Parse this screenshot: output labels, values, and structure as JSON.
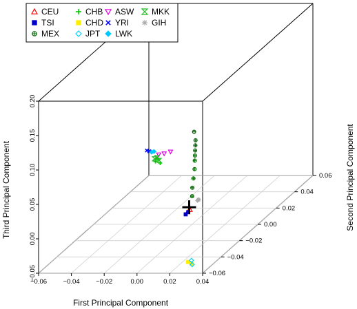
{
  "chart_data": {
    "type": "scatter",
    "dimensions": 3,
    "title": "",
    "xlabel": "First Principal Component",
    "ylabel": "Second Principal Component",
    "zlabel": "Third Principal Component",
    "xlim": [
      -0.06,
      0.04
    ],
    "ylim": [
      -0.06,
      0.06
    ],
    "zlim": [
      -0.05,
      0.2
    ],
    "x_ticks": [
      "−0.06",
      "−0.04",
      "−0.02",
      "0.00",
      "0.02",
      "0.04"
    ],
    "y_ticks": [
      "−0.06",
      "−0.04",
      "−0.02",
      "0.00",
      "0.02",
      "0.04",
      "0.06"
    ],
    "z_ticks": [
      "−0.05",
      "0.00",
      "0.05",
      "0.10",
      "0.15",
      "0.20"
    ],
    "grid": true,
    "legend_position": "top-left",
    "series": [
      {
        "name": "CEU",
        "marker": "triangle-up-open",
        "color": "#ff0000",
        "points": [
          [
            0.028,
            -0.055,
            0.033
          ],
          [
            0.029,
            -0.054,
            0.035
          ]
        ]
      },
      {
        "name": "TSI",
        "marker": "square-filled",
        "color": "#0000cc",
        "points": [
          [
            0.028,
            -0.057,
            0.032
          ],
          [
            0.029,
            -0.056,
            0.034
          ]
        ]
      },
      {
        "name": "MEX",
        "marker": "circle-plus",
        "color": "#006400",
        "points": [
          [
            0.018,
            -0.03,
            0.12
          ],
          [
            0.02,
            -0.032,
            0.11
          ],
          [
            0.022,
            -0.036,
            0.1
          ],
          [
            0.024,
            -0.04,
            0.09
          ],
          [
            0.025,
            -0.042,
            0.08
          ],
          [
            0.026,
            -0.045,
            0.07
          ],
          [
            0.027,
            -0.048,
            0.06
          ],
          [
            0.028,
            -0.05,
            0.05
          ],
          [
            0.021,
            -0.034,
            0.105
          ],
          [
            0.023,
            -0.038,
            0.095
          ]
        ]
      },
      {
        "name": "CHB",
        "marker": "plus",
        "color": "#00cc00",
        "points": [
          [
            -0.042,
            0.035,
            0.0
          ],
          [
            -0.04,
            0.034,
            0.005
          ],
          [
            -0.038,
            0.033,
            0.0
          ]
        ]
      },
      {
        "name": "CHD",
        "marker": "square-filled",
        "color": "#ffee00",
        "points": [
          [
            0.022,
            -0.04,
            -0.06
          ],
          [
            0.021,
            -0.042,
            -0.055
          ]
        ]
      },
      {
        "name": "JPT",
        "marker": "diamond-open",
        "color": "#00d0ff",
        "points": [
          [
            0.022,
            -0.04,
            -0.055
          ],
          [
            0.023,
            -0.041,
            -0.06
          ]
        ]
      },
      {
        "name": "ASW",
        "marker": "triangle-down-open",
        "color": "#e000e0",
        "points": [
          [
            -0.04,
            0.035,
            0.01
          ],
          [
            -0.035,
            0.032,
            0.015
          ],
          [
            -0.03,
            0.03,
            0.02
          ]
        ]
      },
      {
        "name": "YRI",
        "marker": "x",
        "color": "#0000ff",
        "points": [
          [
            -0.05,
            0.04,
            0.01
          ],
          [
            -0.048,
            0.039,
            0.01
          ]
        ]
      },
      {
        "name": "LWK",
        "marker": "diamond-filled",
        "color": "#00c8ff",
        "points": [
          [
            -0.046,
            0.038,
            0.01
          ],
          [
            -0.044,
            0.037,
            0.012
          ]
        ]
      },
      {
        "name": "MKK",
        "marker": "hourglass",
        "color": "#22bb22",
        "points": [
          [
            -0.042,
            0.034,
            0.005
          ],
          [
            -0.04,
            0.033,
            0.008
          ],
          [
            -0.038,
            0.032,
            0.005
          ]
        ]
      },
      {
        "name": "GIH",
        "marker": "asterisk",
        "color": "#aaaaaa",
        "points": [
          [
            0.015,
            -0.02,
            0.01
          ],
          [
            0.018,
            -0.025,
            0.015
          ],
          [
            0.02,
            -0.03,
            0.02
          ]
        ]
      }
    ],
    "annotations": [
      {
        "marker": "cross",
        "color": "#000000",
        "point": [
          0.029,
          -0.055,
          0.04
        ]
      }
    ]
  }
}
